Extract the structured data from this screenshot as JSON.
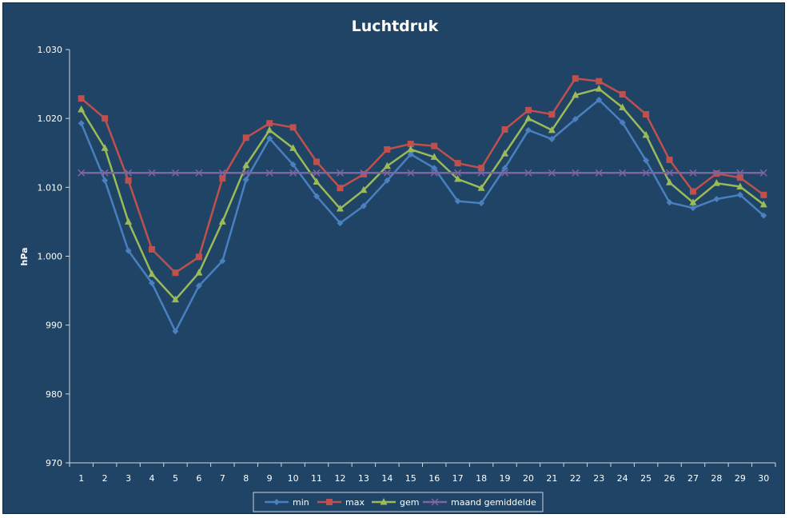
{
  "chart_data": {
    "type": "line",
    "title": "Luchtdruk",
    "xlabel": "",
    "ylabel": "hPa",
    "ylim": [
      970,
      1030
    ],
    "yticks": [
      "970",
      "980",
      "990",
      "1.000",
      "1.010",
      "1.020",
      "1.030"
    ],
    "yticks_values": [
      970,
      980,
      990,
      1000,
      1010,
      1020,
      1030
    ],
    "grid": false,
    "legend_position": "bottom",
    "categories": [
      "1",
      "2",
      "3",
      "4",
      "5",
      "6",
      "7",
      "8",
      "9",
      "10",
      "11",
      "12",
      "13",
      "14",
      "15",
      "16",
      "17",
      "18",
      "19",
      "20",
      "21",
      "22",
      "23",
      "24",
      "25",
      "26",
      "27",
      "28",
      "29",
      "30"
    ],
    "series": [
      {
        "name": "min",
        "color": "#4a7fc0",
        "marker": "diamond",
        "values": [
          1019.3,
          1011.0,
          1000.8,
          996.1,
          989.1,
          995.7,
          999.3,
          1011.1,
          1017.1,
          1013.3,
          1008.7,
          1004.8,
          1007.3,
          1011.0,
          1014.8,
          1012.8,
          1008.0,
          1007.7,
          1012.8,
          1018.3,
          1017.0,
          1019.9,
          1022.7,
          1019.4,
          1013.9,
          1007.8,
          1007.0,
          1008.3,
          1008.9,
          1005.9
        ]
      },
      {
        "name": "max",
        "color": "#c0504d",
        "marker": "square",
        "values": [
          1022.9,
          1020.0,
          1011.0,
          1001.0,
          997.6,
          999.9,
          1011.3,
          1017.2,
          1019.3,
          1018.7,
          1013.7,
          1009.9,
          1011.9,
          1015.5,
          1016.3,
          1016.0,
          1013.5,
          1012.8,
          1018.4,
          1021.2,
          1020.6,
          1025.8,
          1025.4,
          1023.5,
          1020.6,
          1014.0,
          1009.4,
          1012.0,
          1011.4,
          1008.9
        ]
      },
      {
        "name": "gem",
        "color": "#9bbb59",
        "marker": "triangle",
        "values": [
          1021.3,
          1015.7,
          1005.0,
          997.4,
          993.7,
          997.6,
          1005.0,
          1013.2,
          1018.3,
          1015.7,
          1010.8,
          1006.9,
          1009.6,
          1013.1,
          1015.5,
          1014.4,
          1011.2,
          1009.9,
          1014.9,
          1020.0,
          1018.3,
          1023.4,
          1024.3,
          1021.6,
          1017.6,
          1010.7,
          1007.8,
          1010.6,
          1010.1,
          1007.5
        ]
      },
      {
        "name": "maand gemiddelde",
        "color": "#8064a2",
        "marker": "x",
        "values": [
          1012.1,
          1012.1,
          1012.1,
          1012.1,
          1012.1,
          1012.1,
          1012.1,
          1012.1,
          1012.1,
          1012.1,
          1012.1,
          1012.1,
          1012.1,
          1012.1,
          1012.1,
          1012.1,
          1012.1,
          1012.1,
          1012.1,
          1012.1,
          1012.1,
          1012.1,
          1012.1,
          1012.1,
          1012.1,
          1012.1,
          1012.1,
          1012.1,
          1012.1,
          1012.1
        ]
      }
    ]
  }
}
